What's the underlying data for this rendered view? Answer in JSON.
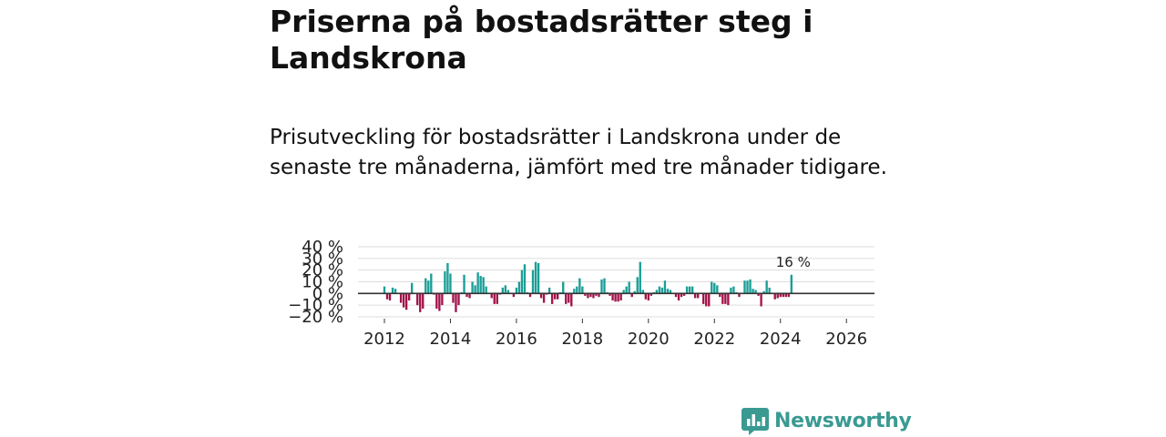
{
  "title": "Priserna på bostadsrätter steg i Landskrona",
  "subtitle": "Prisutveckling för bostadsrätter i Landskrona under de senaste tre månaderna, jämfört med tre månader tidigare.",
  "brand": {
    "name": "Newsworthy",
    "icon": "newsworthy-logo-icon",
    "color": "#3a9a92"
  },
  "chart_data": {
    "type": "bar",
    "title": "Priserna på bostadsrätter steg i Landskrona",
    "xlabel": "",
    "ylabel": "",
    "ylim": [
      -20,
      40
    ],
    "xlim": [
      2011.2,
      2026.85
    ],
    "y_ticks": [
      40,
      30,
      20,
      10,
      0,
      -10,
      -20
    ],
    "y_tick_labels": [
      "40 %",
      "30 %",
      "20 %",
      "10 %",
      "0 %",
      "−10 %",
      "−20 %"
    ],
    "x_ticks": [
      2012,
      2014,
      2016,
      2018,
      2020,
      2022,
      2024,
      2026
    ],
    "x_tick_labels": [
      "2012",
      "2014",
      "2016",
      "2018",
      "2020",
      "2022",
      "2024",
      "2026"
    ],
    "positive_color": "#1a9e96",
    "negative_color": "#a3134a",
    "last_value_label": "16 %",
    "grid": true,
    "start": {
      "year": 2012,
      "month": 1
    },
    "values": [
      6,
      -5,
      -6,
      5,
      4,
      0,
      -8,
      -12,
      -14,
      -6,
      9,
      0,
      -10,
      -16,
      -13,
      13,
      11,
      17,
      -1,
      -13,
      -15,
      -10,
      19,
      26,
      17,
      -8,
      -16,
      -10,
      1,
      16,
      -3,
      -4,
      10,
      7,
      18,
      15,
      14,
      6,
      0,
      -4,
      -9,
      -9,
      -1,
      5,
      7,
      3,
      0,
      -3,
      5,
      10,
      20,
      25,
      1,
      -3,
      20,
      27,
      26,
      -4,
      -8,
      -1,
      5,
      -9,
      -5,
      -5,
      1,
      10,
      -9,
      -8,
      -11,
      4,
      6,
      13,
      6,
      -2,
      -4,
      -3,
      -4,
      -2,
      -3,
      12,
      13,
      1,
      -2,
      -6,
      -7,
      -7,
      -6,
      3,
      6,
      10,
      -3,
      2,
      14,
      27,
      3,
      -5,
      -6,
      -2,
      1,
      3,
      6,
      5,
      11,
      4,
      3,
      0,
      -3,
      -6,
      -3,
      -2,
      6,
      6,
      6,
      -4,
      -4,
      0,
      -9,
      -11,
      -11,
      10,
      9,
      7,
      -3,
      -9,
      -9,
      -10,
      5,
      6,
      1,
      -3,
      0,
      11,
      11,
      12,
      4,
      3,
      -2,
      -11,
      2,
      11,
      5,
      0,
      -5,
      -4,
      -3,
      -3,
      -3,
      -3,
      16
    ]
  }
}
